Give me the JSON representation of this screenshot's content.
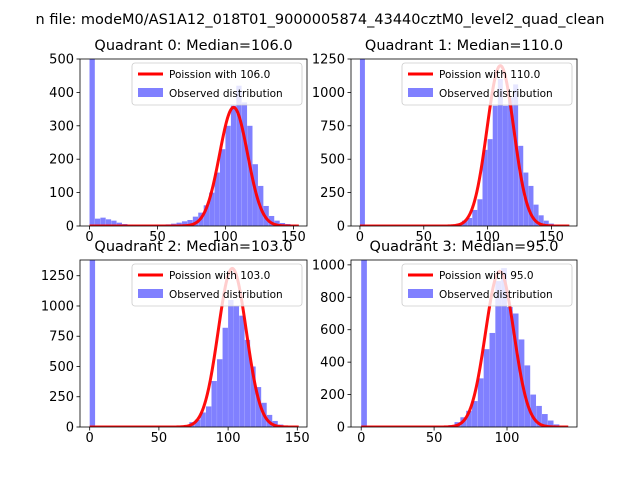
{
  "suptitle": "n file: modeM0/AS1A12_018T01_9000005874_43440cztM0_level2_quad_clean",
  "colors": {
    "observed": "#8080ff",
    "poisson": "#ff0000",
    "axis": "#000000",
    "background": "#ffffff"
  },
  "chart_data": [
    {
      "type": "bar",
      "title": "Quadrant 0: Median=106.0",
      "xlim": [
        -7,
        160
      ],
      "ylim": [
        0,
        500
      ],
      "xticks": [
        0,
        50,
        100,
        150
      ],
      "yticks": [
        0,
        100,
        200,
        300,
        400,
        500
      ],
      "legend": {
        "position": "top-right",
        "poisson_label": "Poission with 106.0",
        "observed_label": "Observed distribution"
      },
      "median": 106,
      "peak": 355,
      "bin_width": 3.9,
      "bins": [
        {
          "x": 0,
          "y": 500
        },
        {
          "x": 4,
          "y": 22
        },
        {
          "x": 8,
          "y": 25
        },
        {
          "x": 12,
          "y": 20
        },
        {
          "x": 16,
          "y": 16
        },
        {
          "x": 20,
          "y": 10
        },
        {
          "x": 24,
          "y": 6
        },
        {
          "x": 28,
          "y": 4
        },
        {
          "x": 32,
          "y": 3
        },
        {
          "x": 36,
          "y": 3
        },
        {
          "x": 40,
          "y": 3
        },
        {
          "x": 44,
          "y": 3
        },
        {
          "x": 48,
          "y": 4
        },
        {
          "x": 52,
          "y": 4
        },
        {
          "x": 56,
          "y": 5
        },
        {
          "x": 60,
          "y": 7
        },
        {
          "x": 64,
          "y": 10
        },
        {
          "x": 68,
          "y": 14
        },
        {
          "x": 72,
          "y": 18
        },
        {
          "x": 76,
          "y": 28
        },
        {
          "x": 80,
          "y": 40
        },
        {
          "x": 84,
          "y": 62
        },
        {
          "x": 88,
          "y": 100
        },
        {
          "x": 92,
          "y": 160
        },
        {
          "x": 96,
          "y": 230
        },
        {
          "x": 100,
          "y": 300
        },
        {
          "x": 104,
          "y": 360
        },
        {
          "x": 108,
          "y": 420
        },
        {
          "x": 112,
          "y": 370
        },
        {
          "x": 116,
          "y": 300
        },
        {
          "x": 120,
          "y": 185
        },
        {
          "x": 124,
          "y": 120
        },
        {
          "x": 128,
          "y": 60
        },
        {
          "x": 132,
          "y": 30
        },
        {
          "x": 136,
          "y": 16
        },
        {
          "x": 140,
          "y": 9
        },
        {
          "x": 144,
          "y": 6
        },
        {
          "x": 148,
          "y": 4
        }
      ]
    },
    {
      "type": "bar",
      "title": "Quadrant 1: Median=110.0",
      "xlim": [
        -7,
        170
      ],
      "ylim": [
        0,
        1250
      ],
      "xticks": [
        0,
        50,
        100,
        150
      ],
      "yticks": [
        0,
        250,
        500,
        750,
        1000,
        1250
      ],
      "legend": {
        "position": "top-right",
        "poisson_label": "Poission with 110.0",
        "observed_label": "Observed distribution"
      },
      "median": 110,
      "peak": 1200,
      "bin_width": 3.9,
      "bins": [
        {
          "x": 0,
          "y": 1250
        },
        {
          "x": 4,
          "y": 6
        },
        {
          "x": 8,
          "y": 5
        },
        {
          "x": 12,
          "y": 4
        },
        {
          "x": 16,
          "y": 3
        },
        {
          "x": 72,
          "y": 8
        },
        {
          "x": 76,
          "y": 18
        },
        {
          "x": 80,
          "y": 40
        },
        {
          "x": 84,
          "y": 60
        },
        {
          "x": 88,
          "y": 120
        },
        {
          "x": 92,
          "y": 200
        },
        {
          "x": 96,
          "y": 570
        },
        {
          "x": 100,
          "y": 650
        },
        {
          "x": 104,
          "y": 900
        },
        {
          "x": 108,
          "y": 1100
        },
        {
          "x": 112,
          "y": 900
        },
        {
          "x": 116,
          "y": 960
        },
        {
          "x": 120,
          "y": 1060
        },
        {
          "x": 124,
          "y": 600
        },
        {
          "x": 128,
          "y": 400
        },
        {
          "x": 132,
          "y": 300
        },
        {
          "x": 136,
          "y": 160
        },
        {
          "x": 140,
          "y": 80
        },
        {
          "x": 144,
          "y": 40
        },
        {
          "x": 148,
          "y": 18
        },
        {
          "x": 152,
          "y": 8
        }
      ]
    },
    {
      "type": "bar",
      "title": "Quadrant 2: Median=103.0",
      "xlim": [
        -7,
        157
      ],
      "ylim": [
        0,
        1380
      ],
      "xticks": [
        0,
        50,
        100,
        150
      ],
      "yticks": [
        0,
        250,
        500,
        750,
        1000,
        1250
      ],
      "legend": {
        "position": "top-right",
        "poisson_label": "Poission with 103.0",
        "observed_label": "Observed distribution"
      },
      "median": 103,
      "peak": 1310,
      "bin_width": 3.9,
      "bins": [
        {
          "x": 0,
          "y": 1380
        },
        {
          "x": 64,
          "y": 5
        },
        {
          "x": 68,
          "y": 12
        },
        {
          "x": 72,
          "y": 40
        },
        {
          "x": 76,
          "y": 60
        },
        {
          "x": 80,
          "y": 120
        },
        {
          "x": 84,
          "y": 170
        },
        {
          "x": 88,
          "y": 380
        },
        {
          "x": 92,
          "y": 560
        },
        {
          "x": 96,
          "y": 820
        },
        {
          "x": 100,
          "y": 1050
        },
        {
          "x": 104,
          "y": 1000
        },
        {
          "x": 108,
          "y": 920
        },
        {
          "x": 112,
          "y": 720
        },
        {
          "x": 116,
          "y": 500
        },
        {
          "x": 120,
          "y": 330
        },
        {
          "x": 124,
          "y": 200
        },
        {
          "x": 128,
          "y": 100
        },
        {
          "x": 132,
          "y": 50
        },
        {
          "x": 136,
          "y": 20
        },
        {
          "x": 140,
          "y": 8
        },
        {
          "x": 144,
          "y": 3
        }
      ]
    },
    {
      "type": "bar",
      "title": "Quadrant 3: Median=95.0",
      "xlim": [
        -7,
        148
      ],
      "ylim": [
        0,
        1030
      ],
      "xticks": [
        0,
        50,
        100
      ],
      "yticks": [
        0,
        200,
        400,
        600,
        800,
        1000
      ],
      "legend": {
        "position": "top-right",
        "poisson_label": "Poission with 95.0",
        "observed_label": "Observed distribution"
      },
      "median": 95,
      "peak": 960,
      "bin_width": 3.9,
      "bins": [
        {
          "x": 0,
          "y": 1030
        },
        {
          "x": 4,
          "y": 6
        },
        {
          "x": 8,
          "y": 4
        },
        {
          "x": 12,
          "y": 3
        },
        {
          "x": 40,
          "y": 3
        },
        {
          "x": 48,
          "y": 4
        },
        {
          "x": 52,
          "y": 4
        },
        {
          "x": 56,
          "y": 6
        },
        {
          "x": 60,
          "y": 12
        },
        {
          "x": 64,
          "y": 30
        },
        {
          "x": 68,
          "y": 60
        },
        {
          "x": 72,
          "y": 100
        },
        {
          "x": 76,
          "y": 160
        },
        {
          "x": 80,
          "y": 300
        },
        {
          "x": 84,
          "y": 480
        },
        {
          "x": 88,
          "y": 580
        },
        {
          "x": 92,
          "y": 900
        },
        {
          "x": 96,
          "y": 980
        },
        {
          "x": 100,
          "y": 740
        },
        {
          "x": 104,
          "y": 700
        },
        {
          "x": 108,
          "y": 540
        },
        {
          "x": 112,
          "y": 380
        },
        {
          "x": 116,
          "y": 200
        },
        {
          "x": 120,
          "y": 130
        },
        {
          "x": 124,
          "y": 80
        },
        {
          "x": 128,
          "y": 40
        },
        {
          "x": 132,
          "y": 16
        }
      ]
    }
  ]
}
